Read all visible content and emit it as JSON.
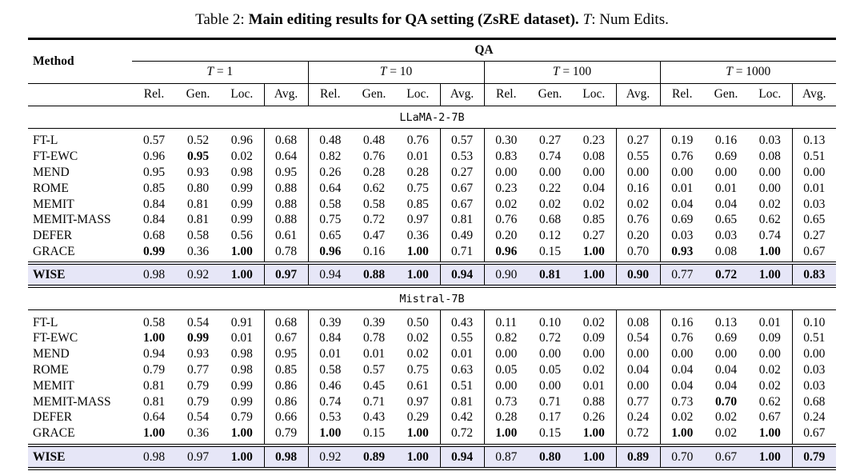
{
  "caption": {
    "prefix": "Table 2:",
    "main_bold": "Main editing results for QA setting (ZsRE dataset).",
    "t_symbol": "T",
    "suffix": ": Num Edits."
  },
  "table": {
    "method_header": "Method",
    "qa_header": "QA",
    "t_groups": [
      "T = 1",
      "T = 10",
      "T = 100",
      "T = 1000"
    ],
    "metrics": [
      "Rel.",
      "Gen.",
      "Loc.",
      "Avg."
    ],
    "highlight_color": "#e6e6f7",
    "sections": [
      {
        "name": "LLaMA-2-7B",
        "rows": [
          {
            "method": "FT-L",
            "values": [
              "0.57",
              "0.52",
              "0.96",
              "0.68",
              "0.48",
              "0.48",
              "0.76",
              "0.57",
              "0.30",
              "0.27",
              "0.23",
              "0.27",
              "0.19",
              "0.16",
              "0.03",
              "0.13"
            ],
            "bold": []
          },
          {
            "method": "FT-EWC",
            "values": [
              "0.96",
              "0.95",
              "0.02",
              "0.64",
              "0.82",
              "0.76",
              "0.01",
              "0.53",
              "0.83",
              "0.74",
              "0.08",
              "0.55",
              "0.76",
              "0.69",
              "0.08",
              "0.51"
            ],
            "bold": [
              1
            ]
          },
          {
            "method": "MEND",
            "values": [
              "0.95",
              "0.93",
              "0.98",
              "0.95",
              "0.26",
              "0.28",
              "0.28",
              "0.27",
              "0.00",
              "0.00",
              "0.00",
              "0.00",
              "0.00",
              "0.00",
              "0.00",
              "0.00"
            ],
            "bold": []
          },
          {
            "method": "ROME",
            "values": [
              "0.85",
              "0.80",
              "0.99",
              "0.88",
              "0.64",
              "0.62",
              "0.75",
              "0.67",
              "0.23",
              "0.22",
              "0.04",
              "0.16",
              "0.01",
              "0.01",
              "0.00",
              "0.01"
            ],
            "bold": []
          },
          {
            "method": "MEMIT",
            "values": [
              "0.84",
              "0.81",
              "0.99",
              "0.88",
              "0.58",
              "0.58",
              "0.85",
              "0.67",
              "0.02",
              "0.02",
              "0.02",
              "0.02",
              "0.04",
              "0.04",
              "0.02",
              "0.03"
            ],
            "bold": []
          },
          {
            "method": "MEMIT-MASS",
            "values": [
              "0.84",
              "0.81",
              "0.99",
              "0.88",
              "0.75",
              "0.72",
              "0.97",
              "0.81",
              "0.76",
              "0.68",
              "0.85",
              "0.76",
              "0.69",
              "0.65",
              "0.62",
              "0.65"
            ],
            "bold": []
          },
          {
            "method": "DEFER",
            "values": [
              "0.68",
              "0.58",
              "0.56",
              "0.61",
              "0.65",
              "0.47",
              "0.36",
              "0.49",
              "0.20",
              "0.12",
              "0.27",
              "0.20",
              "0.03",
              "0.03",
              "0.74",
              "0.27"
            ],
            "bold": []
          },
          {
            "method": "GRACE",
            "values": [
              "0.99",
              "0.36",
              "1.00",
              "0.78",
              "0.96",
              "0.16",
              "1.00",
              "0.71",
              "0.96",
              "0.15",
              "1.00",
              "0.70",
              "0.93",
              "0.08",
              "1.00",
              "0.67"
            ],
            "bold": [
              0,
              2,
              4,
              6,
              8,
              10,
              12,
              14
            ]
          },
          {
            "method": "WISE",
            "highlight": true,
            "values": [
              "0.98",
              "0.92",
              "1.00",
              "0.97",
              "0.94",
              "0.88",
              "1.00",
              "0.94",
              "0.90",
              "0.81",
              "1.00",
              "0.90",
              "0.77",
              "0.72",
              "1.00",
              "0.83"
            ],
            "bold": [
              2,
              3,
              5,
              6,
              7,
              9,
              10,
              11,
              13,
              14,
              15
            ]
          }
        ]
      },
      {
        "name": "Mistral-7B",
        "rows": [
          {
            "method": "FT-L",
            "values": [
              "0.58",
              "0.54",
              "0.91",
              "0.68",
              "0.39",
              "0.39",
              "0.50",
              "0.43",
              "0.11",
              "0.10",
              "0.02",
              "0.08",
              "0.16",
              "0.13",
              "0.01",
              "0.10"
            ],
            "bold": []
          },
          {
            "method": "FT-EWC",
            "values": [
              "1.00",
              "0.99",
              "0.01",
              "0.67",
              "0.84",
              "0.78",
              "0.02",
              "0.55",
              "0.82",
              "0.72",
              "0.09",
              "0.54",
              "0.76",
              "0.69",
              "0.09",
              "0.51"
            ],
            "bold": [
              0,
              1
            ]
          },
          {
            "method": "MEND",
            "values": [
              "0.94",
              "0.93",
              "0.98",
              "0.95",
              "0.01",
              "0.01",
              "0.02",
              "0.01",
              "0.00",
              "0.00",
              "0.00",
              "0.00",
              "0.00",
              "0.00",
              "0.00",
              "0.00"
            ],
            "bold": []
          },
          {
            "method": "ROME",
            "values": [
              "0.79",
              "0.77",
              "0.98",
              "0.85",
              "0.58",
              "0.57",
              "0.75",
              "0.63",
              "0.05",
              "0.05",
              "0.02",
              "0.04",
              "0.04",
              "0.04",
              "0.02",
              "0.03"
            ],
            "bold": []
          },
          {
            "method": "MEMIT",
            "values": [
              "0.81",
              "0.79",
              "0.99",
              "0.86",
              "0.46",
              "0.45",
              "0.61",
              "0.51",
              "0.00",
              "0.00",
              "0.01",
              "0.00",
              "0.04",
              "0.04",
              "0.02",
              "0.03"
            ],
            "bold": []
          },
          {
            "method": "MEMIT-MASS",
            "values": [
              "0.81",
              "0.79",
              "0.99",
              "0.86",
              "0.74",
              "0.71",
              "0.97",
              "0.81",
              "0.73",
              "0.71",
              "0.88",
              "0.77",
              "0.73",
              "0.70",
              "0.62",
              "0.68"
            ],
            "bold": [
              13
            ]
          },
          {
            "method": "DEFER",
            "values": [
              "0.64",
              "0.54",
              "0.79",
              "0.66",
              "0.53",
              "0.43",
              "0.29",
              "0.42",
              "0.28",
              "0.17",
              "0.26",
              "0.24",
              "0.02",
              "0.02",
              "0.67",
              "0.24"
            ],
            "bold": []
          },
          {
            "method": "GRACE",
            "values": [
              "1.00",
              "0.36",
              "1.00",
              "0.79",
              "1.00",
              "0.15",
              "1.00",
              "0.72",
              "1.00",
              "0.15",
              "1.00",
              "0.72",
              "1.00",
              "0.02",
              "1.00",
              "0.67"
            ],
            "bold": [
              0,
              2,
              4,
              6,
              8,
              10,
              12,
              14
            ]
          },
          {
            "method": "WISE",
            "highlight": true,
            "values": [
              "0.98",
              "0.97",
              "1.00",
              "0.98",
              "0.92",
              "0.89",
              "1.00",
              "0.94",
              "0.87",
              "0.80",
              "1.00",
              "0.89",
              "0.70",
              "0.67",
              "1.00",
              "0.79"
            ],
            "bold": [
              2,
              3,
              5,
              6,
              7,
              9,
              10,
              11,
              14,
              15
            ]
          }
        ]
      }
    ]
  }
}
